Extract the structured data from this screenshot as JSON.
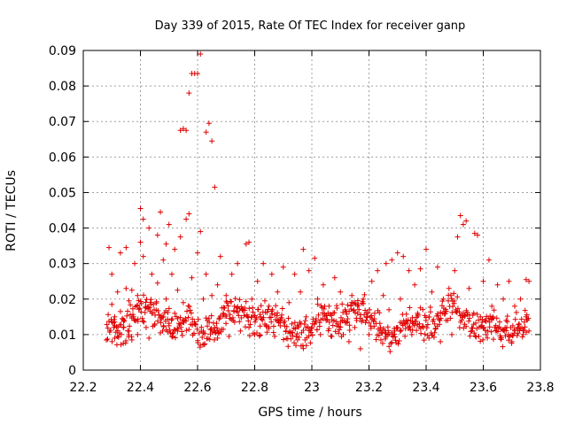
{
  "colors": {
    "points": "#e00000",
    "frame": "#000000",
    "grid": "#a0a0a0",
    "background": "#ffffff"
  },
  "chart_data": {
    "type": "scatter",
    "title": "Day 339 of 2015, Rate Of TEC Index for receiver ganp",
    "xlabel": "GPS time / hours",
    "ylabel": "ROTI / TECUs",
    "xlim": [
      22.2,
      23.8
    ],
    "ylim": [
      0,
      0.09
    ],
    "xticks": [
      22.2,
      22.4,
      22.6,
      22.8,
      23.0,
      23.2,
      23.4,
      23.6,
      23.8
    ],
    "xtick_labels": [
      "22.2",
      "22.4",
      "22.6",
      "22.8",
      "23",
      "23.2",
      "23.4",
      "23.6",
      "23.8"
    ],
    "yticks": [
      0,
      0.01,
      0.02,
      0.03,
      0.04,
      0.05,
      0.06,
      0.07,
      0.08,
      0.09
    ],
    "ytick_labels": [
      "0",
      "0.01",
      "0.02",
      "0.03",
      "0.04",
      "0.05",
      "0.06",
      "0.07",
      "0.08",
      "0.09"
    ],
    "grid": true,
    "marker": "+",
    "series": [
      {
        "name": "ROTI",
        "points": [
          [
            22.29,
            0.0345
          ],
          [
            22.3,
            0.027
          ],
          [
            22.3,
            0.0185
          ],
          [
            22.31,
            0.015
          ],
          [
            22.31,
            0.0125
          ],
          [
            22.32,
            0.0095
          ],
          [
            22.32,
            0.022
          ],
          [
            22.33,
            0.033
          ],
          [
            22.33,
            0.0165
          ],
          [
            22.34,
            0.012
          ],
          [
            22.34,
            0.0075
          ],
          [
            22.35,
            0.023
          ],
          [
            22.35,
            0.0345
          ],
          [
            22.36,
            0.0195
          ],
          [
            22.36,
            0.011
          ],
          [
            22.37,
            0.0085
          ],
          [
            22.37,
            0.0225
          ],
          [
            22.38,
            0.03
          ],
          [
            22.38,
            0.014
          ],
          [
            22.39,
            0.01
          ],
          [
            22.39,
            0.021
          ],
          [
            22.4,
            0.036
          ],
          [
            22.4,
            0.0455
          ],
          [
            22.41,
            0.0425
          ],
          [
            22.41,
            0.032
          ],
          [
            22.42,
            0.0175
          ],
          [
            22.42,
            0.012
          ],
          [
            22.43,
            0.009
          ],
          [
            22.43,
            0.04
          ],
          [
            22.44,
            0.027
          ],
          [
            22.44,
            0.016
          ],
          [
            22.45,
            0.013
          ],
          [
            22.46,
            0.038
          ],
          [
            22.46,
            0.0245
          ],
          [
            22.47,
            0.0105
          ],
          [
            22.47,
            0.0445
          ],
          [
            22.48,
            0.031
          ],
          [
            22.48,
            0.015
          ],
          [
            22.49,
            0.0355
          ],
          [
            22.49,
            0.02
          ],
          [
            22.5,
            0.0125
          ],
          [
            22.5,
            0.041
          ],
          [
            22.51,
            0.027
          ],
          [
            22.51,
            0.0095
          ],
          [
            22.52,
            0.034
          ],
          [
            22.52,
            0.016
          ],
          [
            22.53,
            0.0225
          ],
          [
            22.53,
            0.011
          ],
          [
            22.54,
            0.0675
          ],
          [
            22.54,
            0.0375
          ],
          [
            22.55,
            0.068
          ],
          [
            22.55,
            0.019
          ],
          [
            22.56,
            0.0675
          ],
          [
            22.56,
            0.0425
          ],
          [
            22.57,
            0.044
          ],
          [
            22.57,
            0.078
          ],
          [
            22.58,
            0.0835
          ],
          [
            22.58,
            0.026
          ],
          [
            22.59,
            0.0835
          ],
          [
            22.59,
            0.013
          ],
          [
            22.6,
            0.0835
          ],
          [
            22.6,
            0.033
          ],
          [
            22.61,
            0.089
          ],
          [
            22.61,
            0.039
          ],
          [
            22.62,
            0.02
          ],
          [
            22.62,
            0.011
          ],
          [
            22.63,
            0.067
          ],
          [
            22.63,
            0.027
          ],
          [
            22.64,
            0.0695
          ],
          [
            22.64,
            0.0145
          ],
          [
            22.65,
            0.0645
          ],
          [
            22.65,
            0.021
          ],
          [
            22.66,
            0.0515
          ],
          [
            22.66,
            0.012
          ],
          [
            22.67,
            0.024
          ],
          [
            22.67,
            0.009
          ],
          [
            22.68,
            0.032
          ],
          [
            22.69,
            0.016
          ],
          [
            22.69,
            0.0115
          ],
          [
            22.7,
            0.021
          ],
          [
            22.71,
            0.0095
          ],
          [
            22.72,
            0.027
          ],
          [
            22.73,
            0.0135
          ],
          [
            22.74,
            0.03
          ],
          [
            22.75,
            0.011
          ],
          [
            22.76,
            0.017
          ],
          [
            22.77,
            0.0355
          ],
          [
            22.78,
            0.036
          ],
          [
            22.78,
            0.012
          ],
          [
            22.79,
            0.02
          ],
          [
            22.8,
            0.01
          ],
          [
            22.81,
            0.025
          ],
          [
            22.82,
            0.015
          ],
          [
            22.83,
            0.03
          ],
          [
            22.84,
            0.0125
          ],
          [
            22.85,
            0.018
          ],
          [
            22.86,
            0.027
          ],
          [
            22.87,
            0.0095
          ],
          [
            22.88,
            0.022
          ],
          [
            22.89,
            0.014
          ],
          [
            22.9,
            0.029
          ],
          [
            22.91,
            0.011
          ],
          [
            22.92,
            0.019
          ],
          [
            22.93,
            0.013
          ],
          [
            22.94,
            0.027
          ],
          [
            22.95,
            0.0085
          ],
          [
            22.96,
            0.022
          ],
          [
            22.97,
            0.034
          ],
          [
            22.98,
            0.015
          ],
          [
            22.99,
            0.028
          ],
          [
            23.0,
            0.012
          ],
          [
            23.01,
            0.0315
          ],
          [
            23.02,
            0.02
          ],
          [
            23.03,
            0.01
          ],
          [
            23.04,
            0.024
          ],
          [
            23.05,
            0.014
          ],
          [
            23.06,
            0.018
          ],
          [
            23.07,
            0.0095
          ],
          [
            23.08,
            0.026
          ],
          [
            23.09,
            0.013
          ],
          [
            23.1,
            0.022
          ],
          [
            23.11,
            0.01
          ],
          [
            23.12,
            0.0165
          ],
          [
            23.13,
            0.008
          ],
          [
            23.14,
            0.021
          ],
          [
            23.15,
            0.012
          ],
          [
            23.16,
            0.018
          ],
          [
            23.17,
            0.006
          ],
          [
            23.18,
            0.02
          ],
          [
            23.19,
            0.014
          ],
          [
            23.2,
            0.01
          ],
          [
            23.21,
            0.025
          ],
          [
            23.22,
            0.016
          ],
          [
            23.23,
            0.028
          ],
          [
            23.24,
            0.012
          ],
          [
            23.25,
            0.021
          ],
          [
            23.26,
            0.03
          ],
          [
            23.27,
            0.017
          ],
          [
            23.28,
            0.031
          ],
          [
            23.29,
            0.011
          ],
          [
            23.3,
            0.033
          ],
          [
            23.31,
            0.02
          ],
          [
            23.32,
            0.032
          ],
          [
            23.33,
            0.014
          ],
          [
            23.34,
            0.028
          ],
          [
            23.35,
            0.01
          ],
          [
            23.36,
            0.024
          ],
          [
            23.37,
            0.016
          ],
          [
            23.38,
            0.0285
          ],
          [
            23.39,
            0.012
          ],
          [
            23.4,
            0.034
          ],
          [
            23.41,
            0.009
          ],
          [
            23.42,
            0.022
          ],
          [
            23.43,
            0.013
          ],
          [
            23.44,
            0.029
          ],
          [
            23.45,
            0.008
          ],
          [
            23.46,
            0.02
          ],
          [
            23.47,
            0.014
          ],
          [
            23.48,
            0.023
          ],
          [
            23.49,
            0.01
          ],
          [
            23.5,
            0.028
          ],
          [
            23.51,
            0.0375
          ],
          [
            23.52,
            0.0435
          ],
          [
            23.53,
            0.041
          ],
          [
            23.53,
            0.016
          ],
          [
            23.54,
            0.042
          ],
          [
            23.55,
            0.023
          ],
          [
            23.56,
            0.011
          ],
          [
            23.57,
            0.0385
          ],
          [
            23.58,
            0.038
          ],
          [
            23.59,
            0.015
          ],
          [
            23.6,
            0.025
          ],
          [
            23.61,
            0.01
          ],
          [
            23.62,
            0.031
          ],
          [
            23.63,
            0.018
          ],
          [
            23.64,
            0.012
          ],
          [
            23.65,
            0.024
          ],
          [
            23.66,
            0.009
          ],
          [
            23.67,
            0.02
          ],
          [
            23.68,
            0.014
          ],
          [
            23.69,
            0.025
          ],
          [
            23.7,
            0.008
          ],
          [
            23.71,
            0.018
          ],
          [
            23.72,
            0.012
          ],
          [
            23.73,
            0.02
          ],
          [
            23.74,
            0.01
          ],
          [
            23.75,
            0.0255
          ],
          [
            23.75,
            0.015
          ],
          [
            23.76,
            0.025
          ],
          [
            23.76,
            0.011
          ]
        ]
      }
    ],
    "dense_band": {
      "x_start": 22.28,
      "x_end": 23.76,
      "y_mean": 0.0135,
      "y_spread": 0.0055,
      "point_count": 700
    }
  }
}
